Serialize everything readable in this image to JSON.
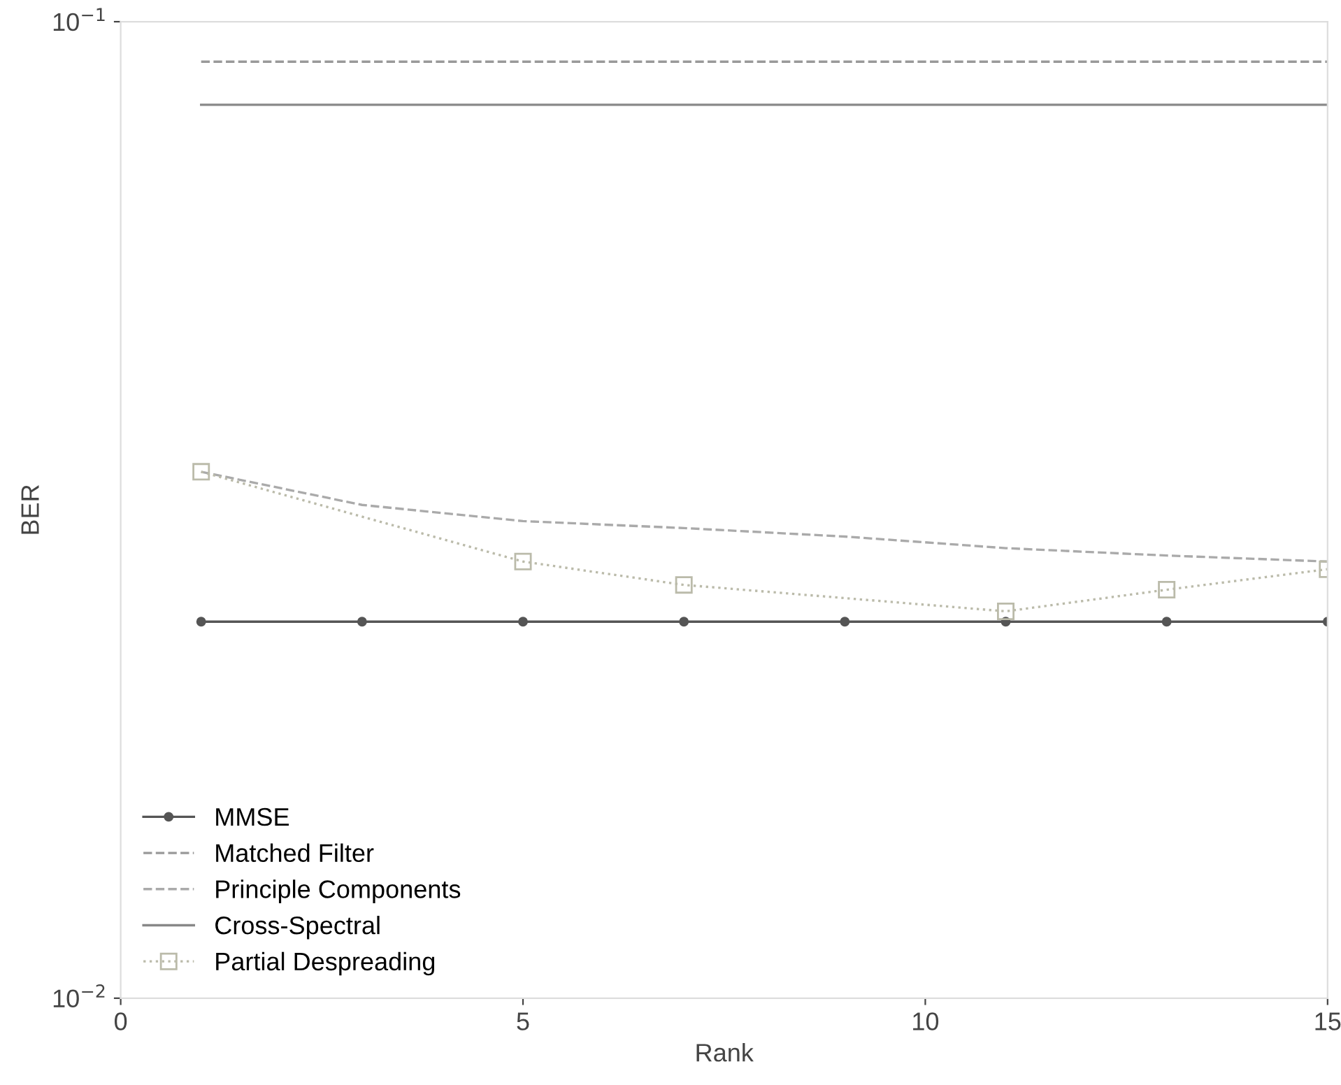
{
  "chart_data": {
    "type": "line",
    "xlabel": "Rank",
    "ylabel": "BER",
    "log": "y",
    "xlim": [
      0,
      15
    ],
    "xticks": [
      0,
      5,
      10,
      15
    ],
    "ylim": [
      0.01,
      0.1
    ],
    "yticks": [
      {
        "value": 0.01,
        "label": "10$^{−2}$"
      },
      {
        "value": 0.1,
        "label": "10$^{−1}$"
      }
    ],
    "grid": false,
    "legend": "bottom left",
    "series": [
      {
        "name": "MMSE",
        "color": "#555555",
        "marker": "circle",
        "line_style": "solid",
        "x": [
          1,
          3,
          5,
          7,
          9,
          11,
          13,
          15
        ],
        "values": [
          0.0243,
          0.0243,
          0.0243,
          0.0243,
          0.0243,
          0.0243,
          0.0243,
          0.0243
        ]
      },
      {
        "name": "Matched Filter",
        "color": "#999999",
        "marker": "none",
        "line_style": "dashed",
        "x": [
          1,
          15
        ],
        "values": [
          0.091,
          0.091
        ]
      },
      {
        "name": "Principle Components",
        "color": "#aaaaaa",
        "marker": "none",
        "line_style": "dashed",
        "x": [
          1,
          3,
          5,
          7,
          9,
          11,
          13,
          15
        ],
        "values": [
          0.0346,
          0.032,
          0.0308,
          0.0303,
          0.0297,
          0.0289,
          0.0284,
          0.028
        ]
      },
      {
        "name": "Cross-Spectral",
        "color": "#888888",
        "marker": "none",
        "line_style": "solid",
        "x": [
          1,
          15
        ],
        "values": [
          0.0822,
          0.0822
        ]
      },
      {
        "name": "Partial Despreading",
        "color": "#bbbbaa",
        "marker": "square",
        "line_style": "dotted",
        "x": [
          1,
          5,
          7,
          11,
          13,
          15
        ],
        "values": [
          0.0346,
          0.028,
          0.0265,
          0.0249,
          0.0262,
          0.0275
        ]
      }
    ]
  }
}
